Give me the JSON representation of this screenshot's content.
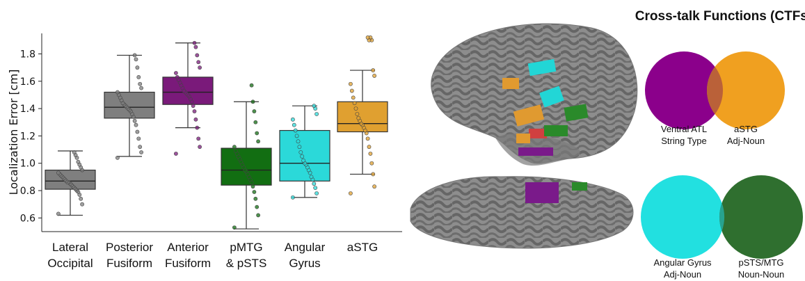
{
  "chart_data": {
    "type": "box",
    "ylabel": "Localization Error [cm]",
    "ylim": [
      0.5,
      1.95
    ],
    "yticks": [
      0.6,
      0.8,
      1.0,
      1.2,
      1.4,
      1.6,
      1.8
    ],
    "ytick_labels": [
      "0.6",
      "0.8",
      "1.0",
      "1.2",
      "1.4",
      "1.6",
      "1.8"
    ],
    "categories": [
      {
        "lines": [
          "Lateral",
          "Occipital"
        ]
      },
      {
        "lines": [
          "Posterior",
          "Fusiform"
        ]
      },
      {
        "lines": [
          "Anterior",
          "Fusiform"
        ]
      },
      {
        "lines": [
          "pMTG",
          "& pSTS"
        ]
      },
      {
        "lines": [
          "Angular",
          "Gyrus"
        ]
      },
      {
        "lines": [
          "aSTG"
        ]
      }
    ],
    "boxes": [
      {
        "color": "#7f7f7f",
        "whisker_low": 0.62,
        "q1": 0.81,
        "median": 0.87,
        "q3": 0.95,
        "whisker_high": 1.09,
        "outliers": [],
        "points": [
          0.63,
          0.7,
          0.74,
          0.77,
          0.79,
          0.8,
          0.81,
          0.82,
          0.83,
          0.84,
          0.85,
          0.86,
          0.86,
          0.87,
          0.88,
          0.89,
          0.9,
          0.91,
          0.92,
          0.93,
          0.95,
          0.97,
          0.99,
          1.01,
          1.04,
          1.06,
          1.08
        ]
      },
      {
        "color": "#7f7f7f",
        "whisker_low": 1.05,
        "q1": 1.33,
        "median": 1.41,
        "q3": 1.52,
        "whisker_high": 1.79,
        "outliers": [],
        "points": [
          1.04,
          1.08,
          1.12,
          1.18,
          1.23,
          1.28,
          1.31,
          1.34,
          1.36,
          1.38,
          1.39,
          1.4,
          1.41,
          1.42,
          1.43,
          1.44,
          1.46,
          1.48,
          1.5,
          1.52,
          1.55,
          1.58,
          1.63,
          1.7,
          1.76,
          1.79
        ]
      },
      {
        "color": "#7a1a7a",
        "whisker_low": 1.26,
        "q1": 1.43,
        "median": 1.52,
        "q3": 1.63,
        "whisker_high": 1.88,
        "outliers": [],
        "points": [
          1.07,
          1.12,
          1.18,
          1.26,
          1.32,
          1.38,
          1.42,
          1.45,
          1.47,
          1.49,
          1.5,
          1.51,
          1.52,
          1.53,
          1.55,
          1.57,
          1.59,
          1.61,
          1.63,
          1.66,
          1.7,
          1.74,
          1.79,
          1.85,
          1.88
        ]
      },
      {
        "color": "#126e12",
        "whisker_low": 0.52,
        "q1": 0.84,
        "median": 0.95,
        "q3": 1.11,
        "whisker_high": 1.45,
        "outliers": [],
        "points": [
          0.53,
          0.62,
          0.68,
          0.74,
          0.79,
          0.83,
          0.86,
          0.88,
          0.9,
          0.92,
          0.94,
          0.95,
          0.97,
          0.99,
          1.01,
          1.03,
          1.05,
          1.07,
          1.09,
          1.12,
          1.16,
          1.22,
          1.3,
          1.38,
          1.45,
          1.57
        ]
      },
      {
        "color": "#2bd9d9",
        "whisker_low": 0.75,
        "q1": 0.87,
        "median": 1.0,
        "q3": 1.24,
        "whisker_high": 1.42,
        "outliers": [],
        "points": [
          0.75,
          0.78,
          0.82,
          0.85,
          0.88,
          0.9,
          0.93,
          0.95,
          0.97,
          0.99,
          1.0,
          1.02,
          1.05,
          1.08,
          1.12,
          1.16,
          1.2,
          1.24,
          1.28,
          1.32,
          1.36,
          1.4,
          1.42
        ]
      },
      {
        "color": "#e0a030",
        "whisker_low": 0.92,
        "q1": 1.23,
        "median": 1.29,
        "q3": 1.45,
        "whisker_high": 1.68,
        "outliers": [
          1.9,
          1.92
        ],
        "points": [
          0.78,
          0.83,
          0.92,
          1.0,
          1.07,
          1.12,
          1.18,
          1.22,
          1.24,
          1.26,
          1.28,
          1.29,
          1.31,
          1.33,
          1.36,
          1.4,
          1.44,
          1.48,
          1.53,
          1.58,
          1.64,
          1.68,
          1.9,
          1.92
        ]
      }
    ]
  },
  "ctf_panel": {
    "title": "Cross-talk Functions (CTFs)",
    "pairs": [
      {
        "left_color": "#8b008b",
        "right_color": "#f0a020",
        "overlap_color": "#b45a3c",
        "left_label": [
          "Ventral ATL",
          "String Type"
        ],
        "right_label": [
          "aSTG",
          "Adj-Noun"
        ]
      },
      {
        "left_color": "#22e0e0",
        "right_color": "#2f6f2f",
        "overlap_color": "#27a99a",
        "left_label": [
          "Angular Gyrus",
          "Adj-Noun"
        ],
        "right_label": [
          "pSTS/MTG",
          "Noun-Noun"
        ]
      }
    ]
  },
  "brain_colors": {
    "surface_dark": "#5a5a5a",
    "surface_light": "#9a9a9a",
    "cyan": "#22d6d6",
    "orange": "#e09a30",
    "green": "#2a8a2a",
    "purple": "#7a1a8a",
    "red": "#d04040"
  }
}
